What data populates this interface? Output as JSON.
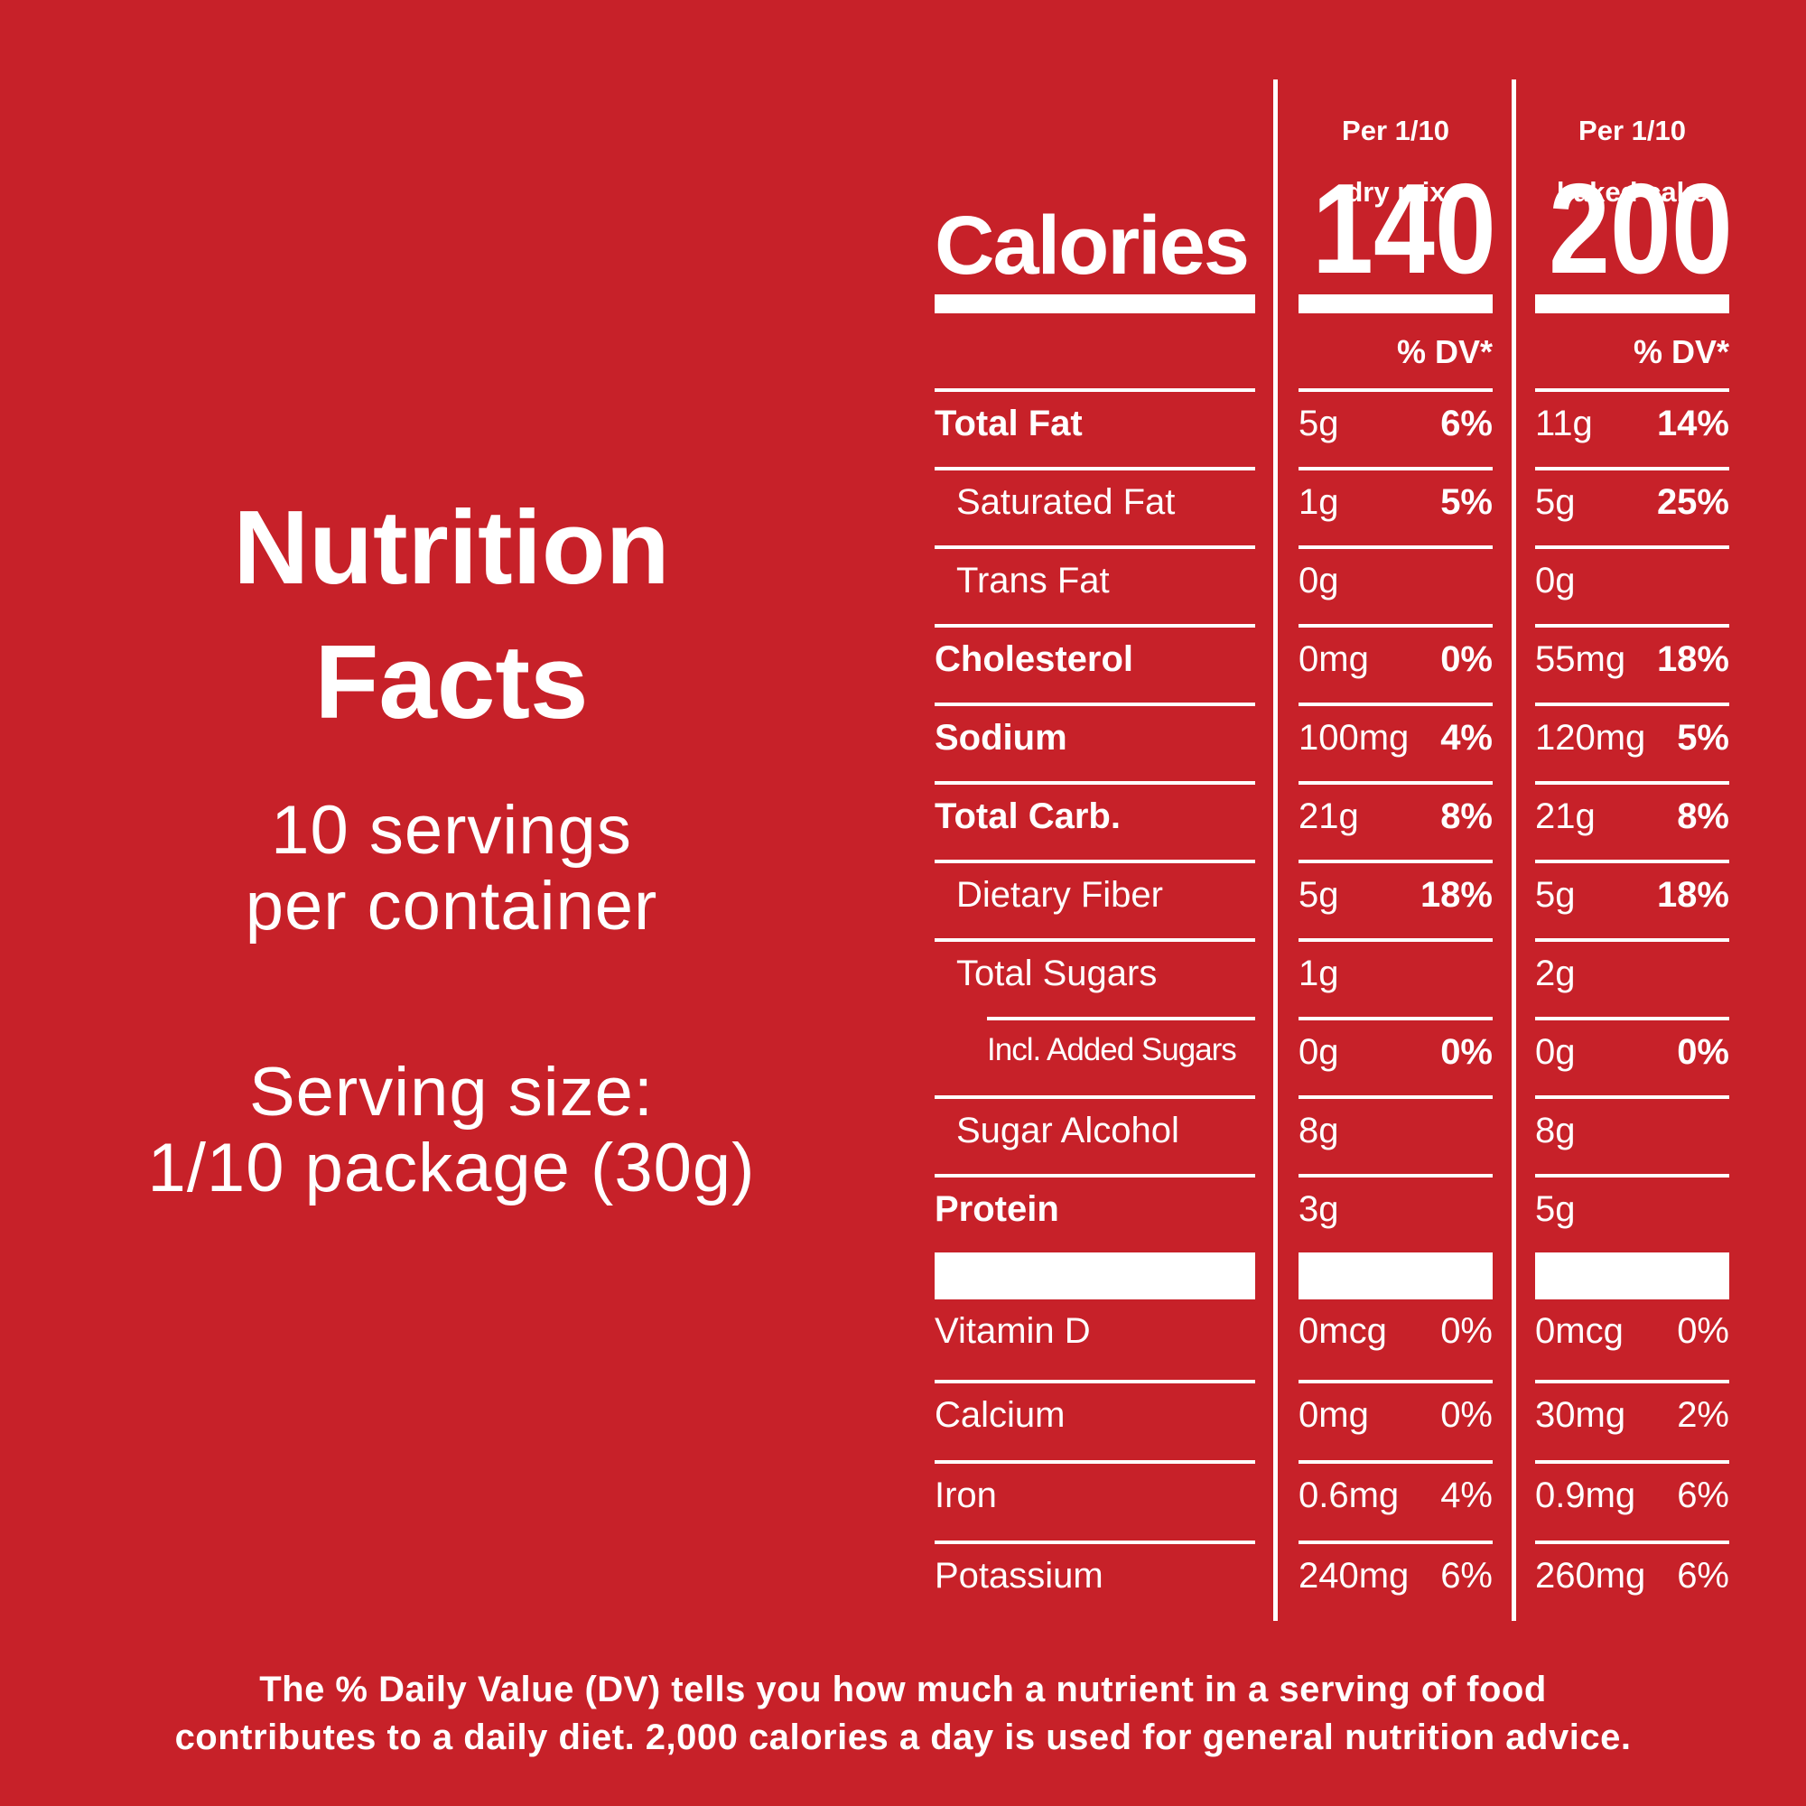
{
  "colors": {
    "background": "#C72129",
    "text": "#FFFFFF"
  },
  "left_panel": {
    "title_line1": "Nutrition",
    "title_line2": "Facts",
    "servings_line1": "10 servings",
    "servings_line2": "per container",
    "serving_size_line1": "Serving size:",
    "serving_size_line2": "1/10 package (30g)"
  },
  "table": {
    "calories_label": "Calories",
    "columns": [
      {
        "header_line1": "Per 1/10",
        "header_line2": "dry mix",
        "calories": "140",
        "dv_header": "% DV*"
      },
      {
        "header_line1": "Per 1/10",
        "header_line2": "baked cake",
        "calories": "200",
        "dv_header": "% DV*"
      }
    ],
    "rows": [
      {
        "label": "Total Fat",
        "style": "bold",
        "dry_amount": "5g",
        "dry_dv": "6%",
        "baked_amount": "11g",
        "baked_dv": "14%"
      },
      {
        "label": "Saturated Fat",
        "style": "indent",
        "dry_amount": "1g",
        "dry_dv": "5%",
        "baked_amount": "5g",
        "baked_dv": "25%"
      },
      {
        "label": "Trans Fat",
        "style": "indent",
        "dry_amount": "0g",
        "dry_dv": "",
        "baked_amount": "0g",
        "baked_dv": ""
      },
      {
        "label": "Cholesterol",
        "style": "bold",
        "dry_amount": "0mg",
        "dry_dv": "0%",
        "baked_amount": "55mg",
        "baked_dv": "18%"
      },
      {
        "label": "Sodium",
        "style": "bold",
        "dry_amount": "100mg",
        "dry_dv": "4%",
        "baked_amount": "120mg",
        "baked_dv": "5%"
      },
      {
        "label": "Total Carb.",
        "style": "bold",
        "dry_amount": "21g",
        "dry_dv": "8%",
        "baked_amount": "21g",
        "baked_dv": "8%"
      },
      {
        "label": "Dietary Fiber",
        "style": "indent",
        "dry_amount": "5g",
        "dry_dv": "18%",
        "baked_amount": "5g",
        "baked_dv": "18%"
      },
      {
        "label": "Total Sugars",
        "style": "indent",
        "dry_amount": "1g",
        "dry_dv": "",
        "baked_amount": "2g",
        "baked_dv": ""
      },
      {
        "label": "Incl. Added Sugars",
        "style": "indent2",
        "dry_amount": "0g",
        "dry_dv": "0%",
        "baked_amount": "0g",
        "baked_dv": "0%"
      },
      {
        "label": "Sugar Alcohol",
        "style": "indent",
        "dry_amount": "8g",
        "dry_dv": "",
        "baked_amount": "8g",
        "baked_dv": ""
      },
      {
        "label": "Protein",
        "style": "bold",
        "dry_amount": "3g",
        "dry_dv": "",
        "baked_amount": "5g",
        "baked_dv": ""
      }
    ],
    "vitamin_rows": [
      {
        "label": "Vitamin D",
        "dry_amount": "0mcg",
        "dry_dv": "0%",
        "baked_amount": "0mcg",
        "baked_dv": "0%"
      },
      {
        "label": "Calcium",
        "dry_amount": "0mg",
        "dry_dv": "0%",
        "baked_amount": "30mg",
        "baked_dv": "2%"
      },
      {
        "label": "Iron",
        "dry_amount": "0.6mg",
        "dry_dv": "4%",
        "baked_amount": "0.9mg",
        "baked_dv": "6%"
      },
      {
        "label": "Potassium",
        "dry_amount": "240mg",
        "dry_dv": "6%",
        "baked_amount": "260mg",
        "baked_dv": "6%"
      }
    ]
  },
  "footer": {
    "line1": "The % Daily Value (DV) tells you how much a nutrient in a serving of food",
    "line2": "contributes to a daily diet. 2,000 calories a day is used for general nutrition advice."
  }
}
